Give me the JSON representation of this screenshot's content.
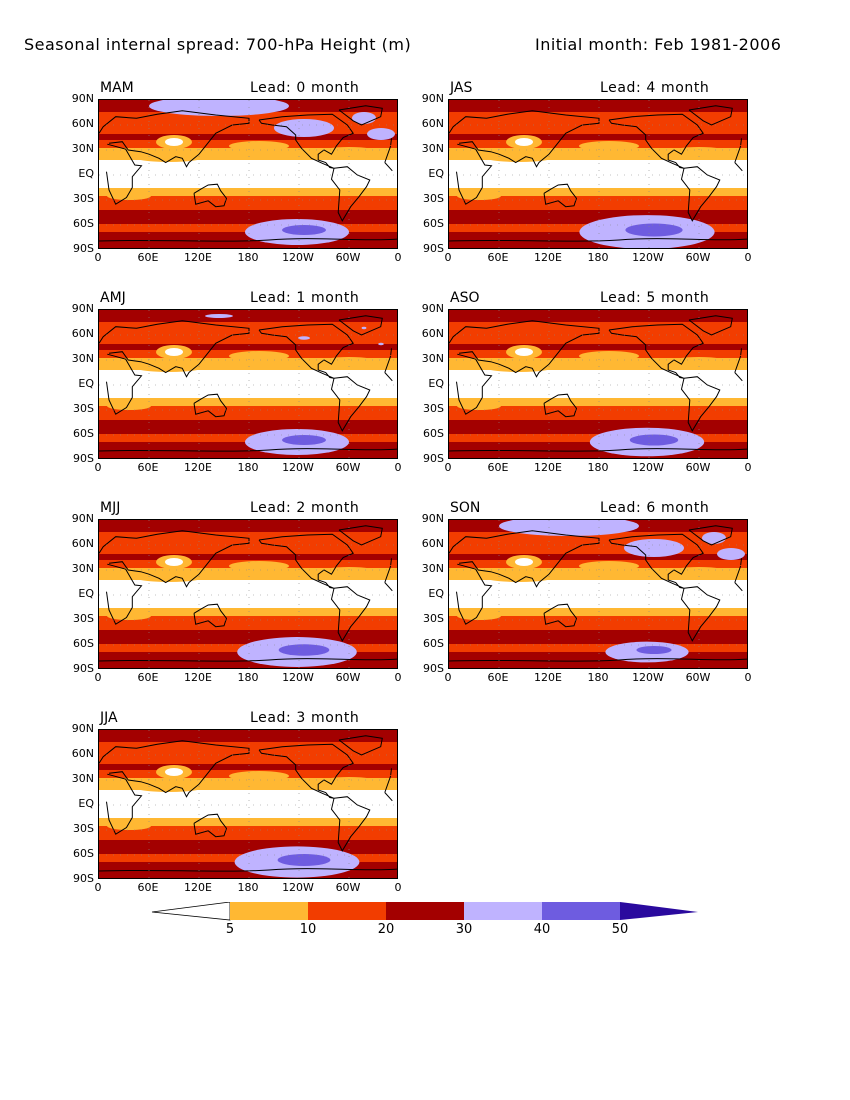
{
  "title": {
    "left": "Seasonal internal spread: 700-hPa Height (m)",
    "right": "Initial month: Feb 1981-2006"
  },
  "axes": {
    "lat_labels": [
      "90N",
      "60N",
      "30N",
      "EQ",
      "30S",
      "60S",
      "90S"
    ],
    "lon_labels": [
      "0",
      "60E",
      "120E",
      "180",
      "120W",
      "60W",
      "0"
    ]
  },
  "panels": [
    {
      "season": "MAM",
      "lead": "Lead: 0 month",
      "col": 0,
      "row": 0,
      "n_lavender": 1.0,
      "s_lavender": 1.0
    },
    {
      "season": "AMJ",
      "lead": "Lead: 1 month",
      "col": 0,
      "row": 1,
      "n_lavender": 0.2,
      "s_lavender": 1.0
    },
    {
      "season": "MJJ",
      "lead": "Lead: 2 month",
      "col": 0,
      "row": 2,
      "n_lavender": 0.0,
      "s_lavender": 1.15
    },
    {
      "season": "JJA",
      "lead": "Lead: 3 month",
      "col": 0,
      "row": 3,
      "n_lavender": 0.0,
      "s_lavender": 1.2
    },
    {
      "season": "JAS",
      "lead": "Lead: 4 month",
      "col": 1,
      "row": 0,
      "n_lavender": 0.0,
      "s_lavender": 1.3
    },
    {
      "season": "ASO",
      "lead": "Lead: 5 month",
      "col": 1,
      "row": 1,
      "n_lavender": 0.0,
      "s_lavender": 1.1
    },
    {
      "season": "SON",
      "lead": "Lead: 6 month",
      "col": 1,
      "row": 2,
      "n_lavender": 1.0,
      "s_lavender": 0.8
    }
  ],
  "colorbar": {
    "levels": [
      "5",
      "10",
      "20",
      "30",
      "40",
      "50"
    ],
    "colors": [
      "#ffffff",
      "#ffb833",
      "#f23d00",
      "#a30000",
      "#bfb3ff",
      "#6e5ce0",
      "#2a0a9e"
    ]
  }
}
